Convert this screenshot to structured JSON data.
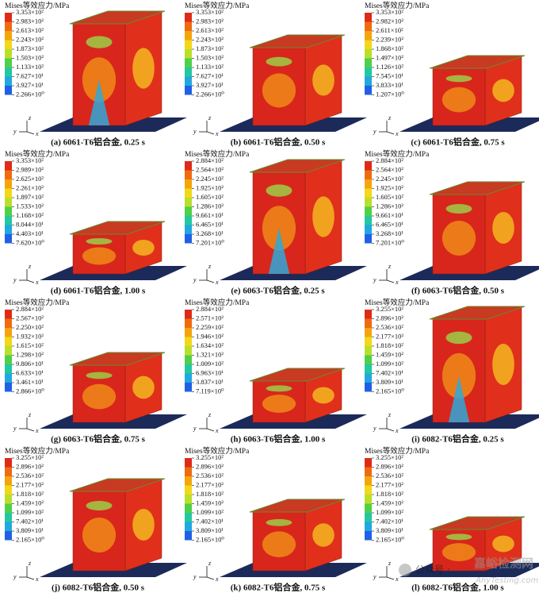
{
  "figure": {
    "panels": [
      {
        "legend_title": "Mises等效应力/MPa",
        "ticks": [
          "3.353×10²",
          "2.983×10²",
          "2.613×10²",
          "2.243×10²",
          "1.873×10²",
          "1.503×10²",
          "1.133×10²",
          "7.627×10¹",
          "3.927×10¹",
          "2.266×10⁰"
        ],
        "axes": {
          "z": "z",
          "y": "y",
          "x": "x"
        },
        "caption": "(a) 6061-T6铝合金, 0.25 s"
      },
      {
        "legend_title": "Mises等效应力/MPa",
        "ticks": [
          "3.353×10²",
          "2.983×10²",
          "2.613×10²",
          "2.243×10²",
          "1.873×10²",
          "1.503×10²",
          "1.133×10²",
          "7.627×10¹",
          "3.927×10¹",
          "2.266×10⁰"
        ],
        "axes": {
          "z": "z",
          "y": "y",
          "x": "x"
        },
        "caption": "(b) 6061-T6铝合金, 0.50 s"
      },
      {
        "legend_title": "Mises等效应力/MPa",
        "ticks": [
          "3.353×10²",
          "2.982×10²",
          "2.611×10²",
          "2.239×10²",
          "1.868×10²",
          "1.497×10²",
          "1.126×10²",
          "7.545×10¹",
          "3.833×10¹",
          "1.207×10⁰"
        ],
        "axes": {
          "z": "z",
          "y": "y",
          "x": "x"
        },
        "caption": "(c) 6061-T6铝合金, 0.75 s"
      },
      {
        "legend_title": "Mises等效应力/MPa",
        "ticks": [
          "3.353×10²",
          "2.989×10²",
          "2.625×10²",
          "2.261×10²",
          "1.897×10²",
          "1.533×10²",
          "1.168×10²",
          "8.044×10¹",
          "4.403×10¹",
          "7.620×10⁰"
        ],
        "axes": {
          "z": "z",
          "y": "y",
          "x": "x"
        },
        "caption": "(d) 6061-T6铝合金, 1.00 s"
      },
      {
        "legend_title": "Mises等效应力/MPa",
        "ticks": [
          "2.884×10²",
          "2.564×10²",
          "2.245×10²",
          "1.925×10²",
          "1.605×10²",
          "1.286×10²",
          "9.661×10¹",
          "6.465×10¹",
          "3.268×10¹",
          "7.201×10⁰"
        ],
        "axes": {
          "z": "z",
          "y": "y",
          "x": "x"
        },
        "caption": "(e) 6063-T6铝合金, 0.25 s"
      },
      {
        "legend_title": "Mises等效应力/MPa",
        "ticks": [
          "2.884×10²",
          "2.564×10²",
          "2.245×10²",
          "1.925×10²",
          "1.605×10²",
          "1.286×10²",
          "9.661×10¹",
          "6.465×10¹",
          "3.268×10¹",
          "7.201×10⁰"
        ],
        "axes": {
          "z": "z",
          "y": "y",
          "x": "x"
        },
        "caption": "(f) 6063-T6铝合金, 0.50 s"
      },
      {
        "legend_title": "Mises等效应力/MPa",
        "ticks": [
          "2.884×10²",
          "2.567×10²",
          "2.250×10²",
          "1.932×10²",
          "1.615×10²",
          "1.298×10²",
          "9.806×10¹",
          "6.633×10¹",
          "3.461×10¹",
          "2.866×10⁰"
        ],
        "axes": {
          "z": "z",
          "y": "y",
          "x": "x"
        },
        "caption": "(g) 6063-T6铝合金, 0.75 s"
      },
      {
        "legend_title": "Mises等效应力/MPa",
        "ticks": [
          "2.884×10²",
          "2.571×10²",
          "2.259×10²",
          "1.946×10²",
          "1.634×10²",
          "1.321×10²",
          "1.009×10²",
          "6.963×10¹",
          "3.837×10¹",
          "7.119×10⁰"
        ],
        "axes": {
          "z": "z",
          "y": "y",
          "x": "x"
        },
        "caption": "(h) 6063-T6铝合金, 1.00 s"
      },
      {
        "legend_title": "Mises等效应力/MPa",
        "ticks": [
          "3.255×10²",
          "2.896×10²",
          "2.536×10²",
          "2.177×10²",
          "1.818×10²",
          "1.459×10²",
          "1.099×10²",
          "7.402×10¹",
          "3.809×10¹",
          "2.165×10⁰"
        ],
        "axes": {
          "z": "z",
          "y": "y",
          "x": "x"
        },
        "caption": "(i) 6082-T6铝合金, 0.25 s"
      },
      {
        "legend_title": "Mises等效应力/MPa",
        "ticks": [
          "3.255×10²",
          "2.896×10²",
          "2.536×10²",
          "2.177×10²",
          "1.818×10²",
          "1.459×10²",
          "1.099×10²",
          "7.402×10¹",
          "3.809×10¹",
          "2.165×10⁰"
        ],
        "axes": {
          "z": "z",
          "y": "y",
          "x": "x"
        },
        "caption": "(j) 6082-T6铝合金, 0.50 s"
      },
      {
        "legend_title": "Mises等效应力/MPa",
        "ticks": [
          "3.255×10²",
          "2.896×10²",
          "2.536×10²",
          "2.177×10²",
          "1.818×10²",
          "1.459×10²",
          "1.099×10²",
          "7.402×10¹",
          "3.809×10¹",
          "2.165×10⁰"
        ],
        "axes": {
          "z": "z",
          "y": "y",
          "x": "x"
        },
        "caption": "(k) 6082-T6铝合金, 0.75 s"
      },
      {
        "legend_title": "Mises等效应力/MPa",
        "ticks": [
          "3.255×10²",
          "2.896×10²",
          "2.536×10²",
          "2.177×10²",
          "1.818×10²",
          "1.459×10²",
          "1.099×10²",
          "7.402×10¹",
          "3.809×10¹",
          "2.165×10⁰"
        ],
        "axes": {
          "z": "z",
          "y": "y",
          "x": "x"
        },
        "caption": "(l) 6082-T6铝合金, 1.00 s"
      }
    ]
  },
  "watermark": {
    "account": "公众号 ·",
    "name": "嘉峪检测网",
    "site": "AnyTesting.com"
  }
}
